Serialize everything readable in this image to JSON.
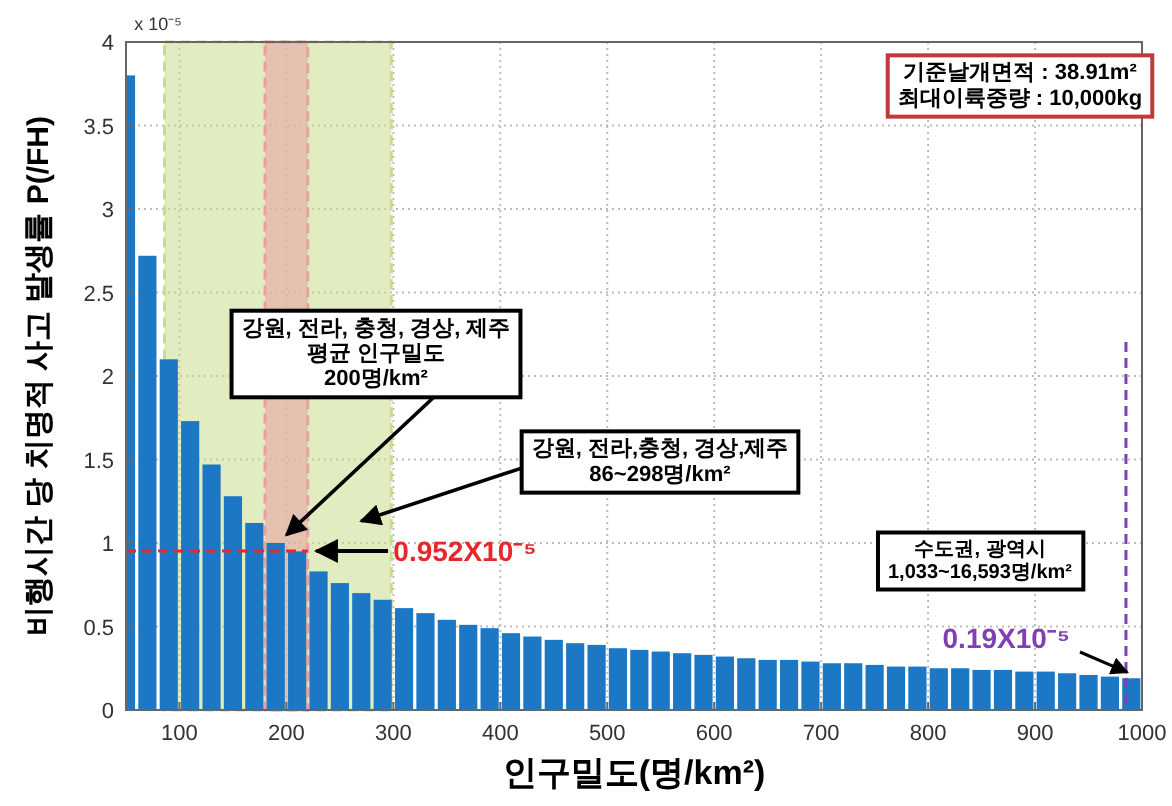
{
  "chart_data": {
    "type": "bar",
    "xlabel": "인구밀도(명/km²)",
    "ylabel": "비행시간 당 치명적 사고 발생률 P(/FH)",
    "x": [
      50,
      70,
      90,
      110,
      130,
      150,
      170,
      190,
      210,
      230,
      250,
      270,
      290,
      310,
      330,
      350,
      370,
      390,
      410,
      430,
      450,
      470,
      490,
      510,
      530,
      550,
      570,
      590,
      610,
      630,
      650,
      670,
      690,
      710,
      730,
      750,
      770,
      790,
      810,
      830,
      850,
      870,
      890,
      910,
      930,
      950,
      970,
      990
    ],
    "series": [
      {
        "color": "#1c78c4",
        "values": [
          3.8,
          2.72,
          2.1,
          1.73,
          1.47,
          1.28,
          1.12,
          1.0,
          0.95,
          0.83,
          0.76,
          0.7,
          0.66,
          0.61,
          0.58,
          0.54,
          0.51,
          0.49,
          0.46,
          0.44,
          0.42,
          0.4,
          0.39,
          0.37,
          0.36,
          0.35,
          0.34,
          0.33,
          0.32,
          0.31,
          0.3,
          0.3,
          0.29,
          0.28,
          0.28,
          0.27,
          0.26,
          0.26,
          0.25,
          0.25,
          0.24,
          0.24,
          0.23,
          0.23,
          0.22,
          0.21,
          0.2,
          0.19
        ]
      }
    ],
    "xlim": [
      50,
      1000
    ],
    "xticks": [
      100,
      200,
      300,
      400,
      500,
      600,
      700,
      800,
      900,
      1000
    ],
    "ylim": [
      0,
      4
    ],
    "yticks": [
      0,
      0.5,
      1,
      1.5,
      2,
      2.5,
      3,
      3.5,
      4
    ],
    "grid": true,
    "bands": [
      {
        "axis": "x",
        "from": 86,
        "to": 298,
        "color": "#c8dc8c"
      },
      {
        "axis": "x",
        "from": 180,
        "to": 220,
        "color": "#e8a0a0"
      }
    ],
    "ref_lines": [
      {
        "axis": "y",
        "value": 0.952,
        "label": "0.952X10⁻⁵",
        "color": "#e8262b",
        "line_style": "dashed"
      },
      {
        "axis": "x",
        "value": 985,
        "color": "#8040b0",
        "line_style": "dashed"
      }
    ],
    "annotations": [
      "x 10⁻⁵",
      "기준날개면적 : 38.91m²\n최대이륙중량 : 10,000kg",
      "강원, 전라, 충청, 경상, 제주\n평균 인구밀도\n200명/km²",
      "강원, 전라,충청, 경상,제주\n86~298명/km²",
      "수도권, 광역시\n1,033~16,593명/km²",
      {
        "text": "0.19X10⁻⁵",
        "x": 990,
        "y": 0.19
      }
    ]
  }
}
